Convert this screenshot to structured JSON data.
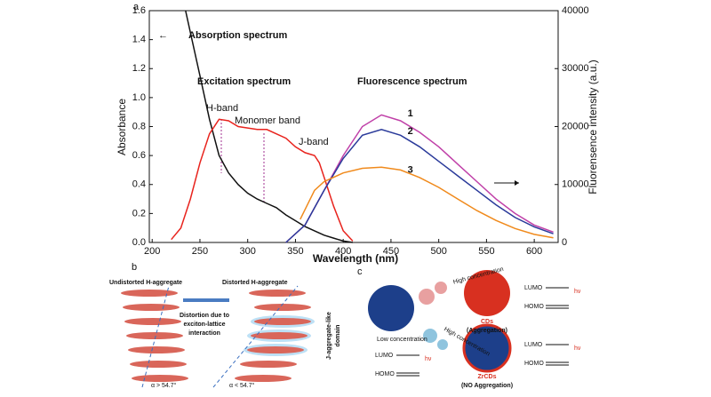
{
  "chart_data": {
    "type": "line",
    "panel_label": "a",
    "xlabel": "Wavelength (nm)",
    "ylabel": "Absorbance",
    "y2label": "Fluorensence intensity (a.u.)",
    "xlim": [
      197,
      625
    ],
    "xticks": [
      200,
      250,
      300,
      350,
      400,
      450,
      500,
      550,
      600
    ],
    "ylim": [
      0,
      1.6
    ],
    "yticks": [
      {
        "value": 0,
        "label": "0.0"
      },
      0.2,
      0.4,
      0.6,
      0.8,
      {
        "value": 1,
        "label": "1.0"
      },
      1.2,
      1.4,
      1.6
    ],
    "y2lim": [
      0,
      40000
    ],
    "y2ticks": [
      0,
      10000,
      20000,
      30000,
      40000
    ],
    "annotations": {
      "fluorescence": "Fluorescence spectrum",
      "h_band": "H-band",
      "monomer_band": "Monomer band",
      "j_band": "J-band"
    },
    "series": [
      {
        "name": "Absorption spectrum",
        "color": "#111111",
        "x": [
          235,
          240,
          250,
          260,
          270,
          280,
          290,
          300,
          310,
          320,
          330,
          340,
          350,
          360,
          370,
          380,
          390,
          400,
          410
        ],
        "values": [
          1.6,
          1.45,
          1.15,
          0.85,
          0.6,
          0.48,
          0.4,
          0.34,
          0.3,
          0.27,
          0.24,
          0.19,
          0.15,
          0.11,
          0.08,
          0.05,
          0.03,
          0.01,
          0.0
        ]
      },
      {
        "name": "Excitation spectrum",
        "color": "#e8231d",
        "x": [
          220,
          230,
          240,
          250,
          260,
          270,
          280,
          290,
          300,
          310,
          320,
          330,
          340,
          350,
          360,
          370,
          375,
          380,
          390,
          400,
          410
        ],
        "values": [
          0.02,
          0.1,
          0.3,
          0.55,
          0.75,
          0.85,
          0.84,
          0.8,
          0.79,
          0.78,
          0.78,
          0.75,
          0.72,
          0.66,
          0.62,
          0.6,
          0.55,
          0.45,
          0.25,
          0.08,
          0.01
        ]
      },
      {
        "name": "1",
        "color": "#c040a8",
        "axis": "y2",
        "x": [
          340,
          360,
          380,
          400,
          420,
          440,
          460,
          480,
          500,
          520,
          540,
          560,
          580,
          600,
          620
        ],
        "values": [
          0,
          3000,
          9000,
          15000,
          20000,
          22000,
          21000,
          19000,
          16500,
          13500,
          10500,
          7500,
          5000,
          3000,
          1800
        ]
      },
      {
        "name": "2",
        "color": "#2a3a9a",
        "axis": "y2",
        "x": [
          340,
          360,
          380,
          400,
          420,
          440,
          460,
          480,
          500,
          520,
          540,
          560,
          580,
          600,
          620
        ],
        "values": [
          0,
          3000,
          9000,
          14500,
          18500,
          19500,
          18500,
          16500,
          14000,
          11500,
          9000,
          6500,
          4300,
          2700,
          1500
        ]
      },
      {
        "name": "3",
        "color": "#f08a1c",
        "axis": "y2",
        "x": [
          355,
          370,
          380,
          400,
          420,
          440,
          460,
          480,
          500,
          520,
          540,
          560,
          580,
          600,
          620
        ],
        "values": [
          4000,
          9000,
          10500,
          12000,
          12800,
          13000,
          12500,
          11200,
          9500,
          7500,
          5500,
          3800,
          2400,
          1400,
          800
        ]
      }
    ]
  },
  "panel_b": {
    "label": "b",
    "left_title": "Undistorted H-aggregate",
    "right_title": "Distorted H-aggregate",
    "arrow_text": [
      "Distortion due to",
      "exciton-lattice",
      "interaction"
    ],
    "domain_text": [
      "J-aggregate-like",
      "domain"
    ],
    "angle_left": "α > 54.7°",
    "angle_right": "α < 54.7°"
  },
  "panel_c": {
    "label": "c",
    "cds": "CDs",
    "cds_state": "(Aggregation)",
    "zrcds": "ZrCDs",
    "zrcds_state": "(NO Aggregation)",
    "lumo": "LUMO",
    "homo": "HOMO",
    "hv": "hν",
    "low": "Low concentration",
    "high": "High concentration"
  }
}
